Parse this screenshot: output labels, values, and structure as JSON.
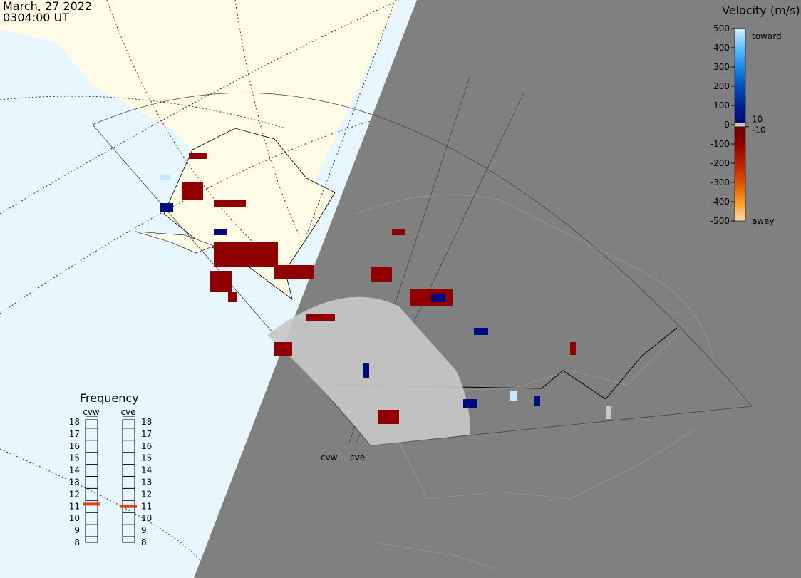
{
  "header": {
    "date": "March, 27 2022",
    "time": "0304:00 UT"
  },
  "colorbar": {
    "title": "Velocity (m/s)",
    "range": [
      -500,
      500
    ],
    "ticks": [
      500,
      400,
      300,
      200,
      100,
      0,
      -100,
      -200,
      -300,
      -400,
      -500
    ],
    "inner_ticks": [
      10,
      -10
    ],
    "top_label": "toward",
    "bottom_label": "away"
  },
  "frequency": {
    "title": "Frequency",
    "range": [
      8,
      18
    ],
    "ticks": [
      18,
      17,
      16,
      15,
      14,
      13,
      12,
      11,
      10,
      9,
      8
    ],
    "radars": [
      {
        "name": "cvw",
        "value": 10.7
      },
      {
        "name": "cve",
        "value": 10.5
      }
    ]
  },
  "stations": [
    "cvw",
    "cve"
  ]
}
